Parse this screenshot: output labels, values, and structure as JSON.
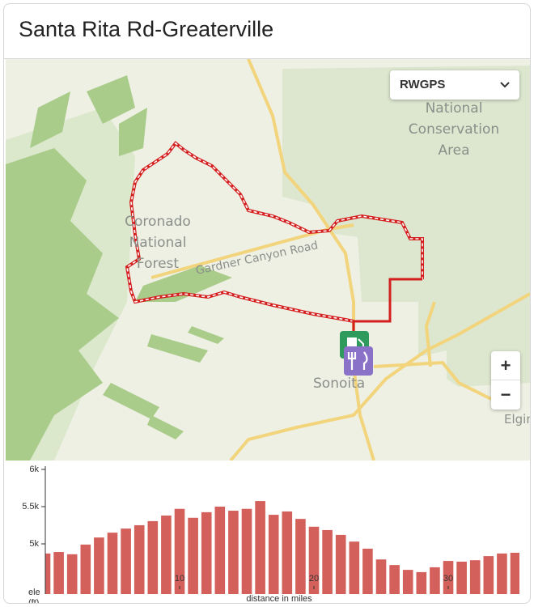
{
  "header": {
    "title": "Santa Rita Rd-Greaterville"
  },
  "map": {
    "layer_select": "RWGPS",
    "conservation_area": [
      "National",
      "Conservation",
      "Area"
    ],
    "forest": [
      "Coronado",
      "National",
      "Forest"
    ],
    "road": "Gardner Canyon Road",
    "towns": [
      "Sonoita",
      "Elgin"
    ],
    "zoom_in": "+",
    "zoom_out": "−"
  },
  "chart_data": {
    "type": "bar",
    "x_label": "distance in miles",
    "y_label": "ele (ft)",
    "x": [
      0,
      1,
      2,
      3,
      4,
      5,
      6,
      7,
      8,
      9,
      10,
      11,
      12,
      13,
      14,
      15,
      16,
      17,
      18,
      19,
      20,
      21,
      22,
      23,
      24,
      25,
      26,
      27,
      28,
      29,
      30,
      31,
      32,
      33,
      34,
      35
    ],
    "values": [
      4870,
      4890,
      4860,
      4990,
      5085,
      5150,
      5205,
      5250,
      5305,
      5380,
      5470,
      5350,
      5425,
      5500,
      5445,
      5470,
      5575,
      5390,
      5435,
      5335,
      5230,
      5185,
      5120,
      5030,
      4935,
      4790,
      4715,
      4650,
      4620,
      4685,
      4770,
      4760,
      4780,
      4835,
      4870,
      4880
    ],
    "color": "#d4605b",
    "xlim": [
      0,
      35.3
    ],
    "xticks": [
      10,
      20,
      30
    ],
    "ylim": [
      4325,
      6000
    ],
    "yticks": [
      {
        "value": 5000,
        "label": "5k"
      },
      {
        "value": 5500,
        "label": "5.5k"
      },
      {
        "value": 6000,
        "label": "6k"
      }
    ]
  }
}
